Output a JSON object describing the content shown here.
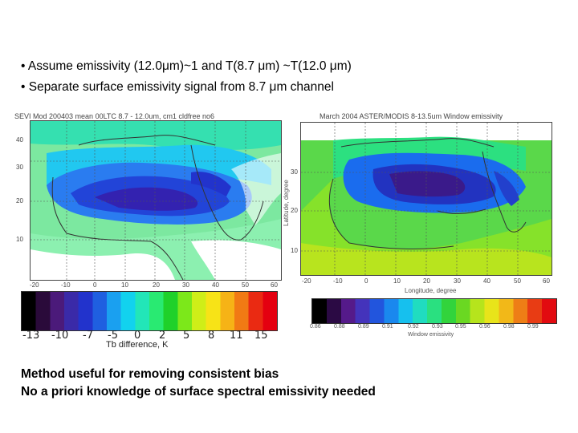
{
  "bullets": [
    "• Assume emissivity (12.0μm)~1 and T(8.7 μm) ~T(12.0 μm)",
    "• Separate surface emissivity signal from 8.7 μm channel"
  ],
  "left_panel": {
    "title": "SEVI Mod 200403 mean 00LTC 8.7 - 12.0um, cm1 cldfree no6",
    "y_ticks": [
      "40",
      "30",
      "20",
      "10"
    ],
    "x_ticks": [
      "-20",
      "-10",
      "0",
      "10",
      "20",
      "30",
      "40",
      "50",
      "60"
    ],
    "colorbar_ticks": [
      "-13",
      "-10",
      "-7",
      "-5",
      "0",
      "2",
      "5",
      "8",
      "11",
      "15"
    ],
    "colorbar_label": "Tb difference, K",
    "colorbar_colors": [
      "#000000",
      "#2a0a3a",
      "#4b1a7a",
      "#3a2aa8",
      "#2233cc",
      "#1f5fe0",
      "#1aa0f0",
      "#12d2ee",
      "#22e6b8",
      "#29ea72",
      "#1fd12a",
      "#7ce81a",
      "#cfee18",
      "#f7e317",
      "#f6b316",
      "#f17a14",
      "#ea2a12",
      "#e40010"
    ]
  },
  "right_panel": {
    "title": "March 2004 ASTER/MODIS 8-13.5um Window emissivity",
    "y_ticks": [
      "30",
      "20",
      "10"
    ],
    "y_label": "Latitude, degree",
    "x_ticks": [
      "-20",
      "-10",
      "0",
      "10",
      "20",
      "30",
      "40",
      "50",
      "60"
    ],
    "x_label": "Longitude, degree",
    "colorbar_ticks": [
      "0.86",
      "0.88",
      "0.89",
      "0.91",
      "0.92",
      "0.93",
      "0.95",
      "0.96",
      "0.98",
      "0.99"
    ],
    "colorbar_label": "Window emissivity",
    "colorbar_colors": [
      "#000000",
      "#2b0a44",
      "#551a8a",
      "#4433bb",
      "#2255dd",
      "#1a88ee",
      "#16c0ee",
      "#20dcc0",
      "#2ae080",
      "#32d43c",
      "#6ad822",
      "#b6e41c",
      "#e8e41a",
      "#f2b818",
      "#ee7e16",
      "#e83c14",
      "#e20a10"
    ]
  },
  "notes": [
    "Method useful for removing consistent bias",
    "No a priori knowledge of surface spectral emissivity needed"
  ]
}
